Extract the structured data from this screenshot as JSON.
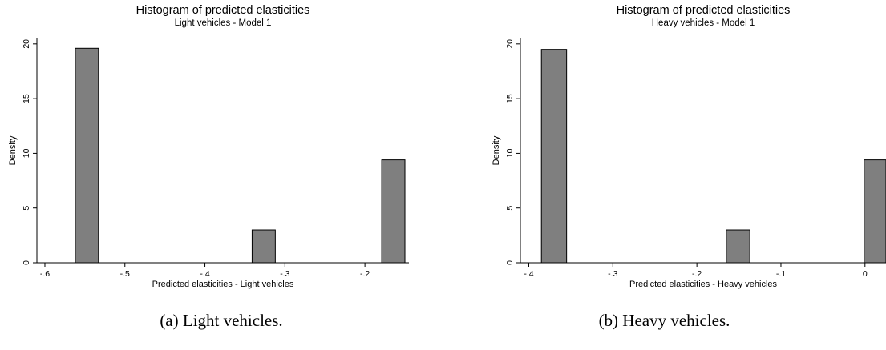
{
  "chart_data": [
    {
      "type": "bar",
      "title": "Histogram of predicted elasticities",
      "subtitle": "Light vehicles - Model 1",
      "xlabel": "Predicted elasticities - Light vehicles",
      "ylabel": "Density",
      "xlim": [
        -0.61,
        -0.145
      ],
      "ylim": [
        0,
        20.5
      ],
      "xticks": [
        -0.6,
        -0.5,
        -0.4,
        -0.3,
        -0.2
      ],
      "xtick_labels": [
        "-.6",
        "-.5",
        "-.4",
        "-.3",
        "-.2"
      ],
      "yticks": [
        0,
        5,
        10,
        15,
        20
      ],
      "ytick_labels": [
        "0",
        "5",
        "10",
        "15",
        "20"
      ],
      "bins": [
        {
          "x0": -0.562,
          "x1": -0.533,
          "density": 19.6
        },
        {
          "x0": -0.341,
          "x1": -0.312,
          "density": 3.0
        },
        {
          "x0": -0.179,
          "x1": -0.15,
          "density": 9.4
        }
      ],
      "bar_color": "#7f7f7f",
      "caption": "(a) Light vehicles."
    },
    {
      "type": "bar",
      "title": "Histogram of predicted elasticities",
      "subtitle": "Heavy vehicles - Model 1",
      "xlabel": "Predicted elasticities - Heavy vehicles",
      "ylabel": "Density",
      "xlim": [
        -0.41,
        0.025
      ],
      "ylim": [
        0,
        20.5
      ],
      "xticks": [
        -0.4,
        -0.3,
        -0.2,
        -0.1,
        0
      ],
      "xtick_labels": [
        "-.4",
        "-.3",
        "-.2",
        "-.1",
        "0"
      ],
      "yticks": [
        0,
        5,
        10,
        15,
        20
      ],
      "ytick_labels": [
        "0",
        "5",
        "10",
        "15",
        "20"
      ],
      "bins": [
        {
          "x0": -0.385,
          "x1": -0.355,
          "density": 19.5
        },
        {
          "x0": -0.165,
          "x1": -0.137,
          "density": 3.0
        },
        {
          "x0": -0.001,
          "x1": 0.025,
          "density": 9.4
        }
      ],
      "bar_color": "#7f7f7f",
      "caption": "(b) Heavy vehicles."
    }
  ]
}
